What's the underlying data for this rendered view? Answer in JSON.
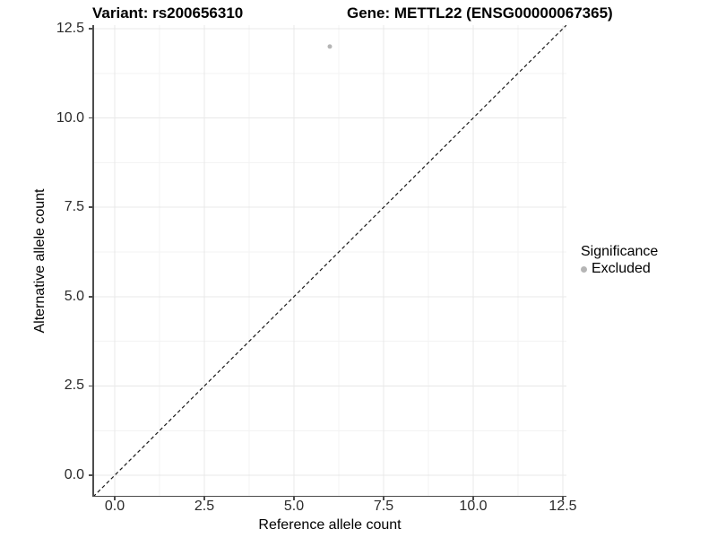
{
  "header": {
    "variant_title": "Variant: rs200656310",
    "gene_title": "Gene: METTL22 (ENSG00000067365)"
  },
  "chart_data": {
    "type": "scatter",
    "title_left": "Variant: rs200656310",
    "title_right": "Gene: METTL22 (ENSG00000067365)",
    "xlabel": "Reference allele count",
    "ylabel": "Alternative allele count",
    "xlim": [
      -0.6,
      12.6
    ],
    "ylim": [
      -0.6,
      12.6
    ],
    "x_major_ticks": [
      0,
      2.5,
      5,
      7.5,
      10,
      12.5
    ],
    "y_major_ticks": [
      0,
      2.5,
      5,
      7.5,
      10,
      12.5
    ],
    "x_tick_labels": [
      "0.0",
      "2.5",
      "5.0",
      "7.5",
      "10.0",
      "12.5"
    ],
    "y_tick_labels": [
      "0.0",
      "2.5",
      "5.0",
      "7.5",
      "10.0",
      "12.5"
    ],
    "x_minor_ticks": [
      1.25,
      3.75,
      6.25,
      8.75,
      11.25
    ],
    "y_minor_ticks": [
      1.25,
      3.75,
      6.25,
      8.75,
      11.25
    ],
    "grid": "major and minor, on white background",
    "identity_line": {
      "slope": 1,
      "intercept": 0,
      "style": "dashed",
      "color": "#1a1a1a"
    },
    "series": [
      {
        "name": "Excluded",
        "color": "#b5b5b5",
        "points": [
          {
            "x": 6,
            "y": 12
          }
        ]
      }
    ],
    "legend": {
      "title": "Significance",
      "position": "right",
      "entries": [
        {
          "label": "Excluded",
          "color": "#b5b5b5"
        }
      ]
    },
    "colors": {
      "grid_major": "#e8e8e8",
      "grid_minor": "#f3f3f3",
      "axis_line": "#4d4d4d",
      "tick_text": "#2b2b2b",
      "point": "#b5b5b5"
    }
  }
}
